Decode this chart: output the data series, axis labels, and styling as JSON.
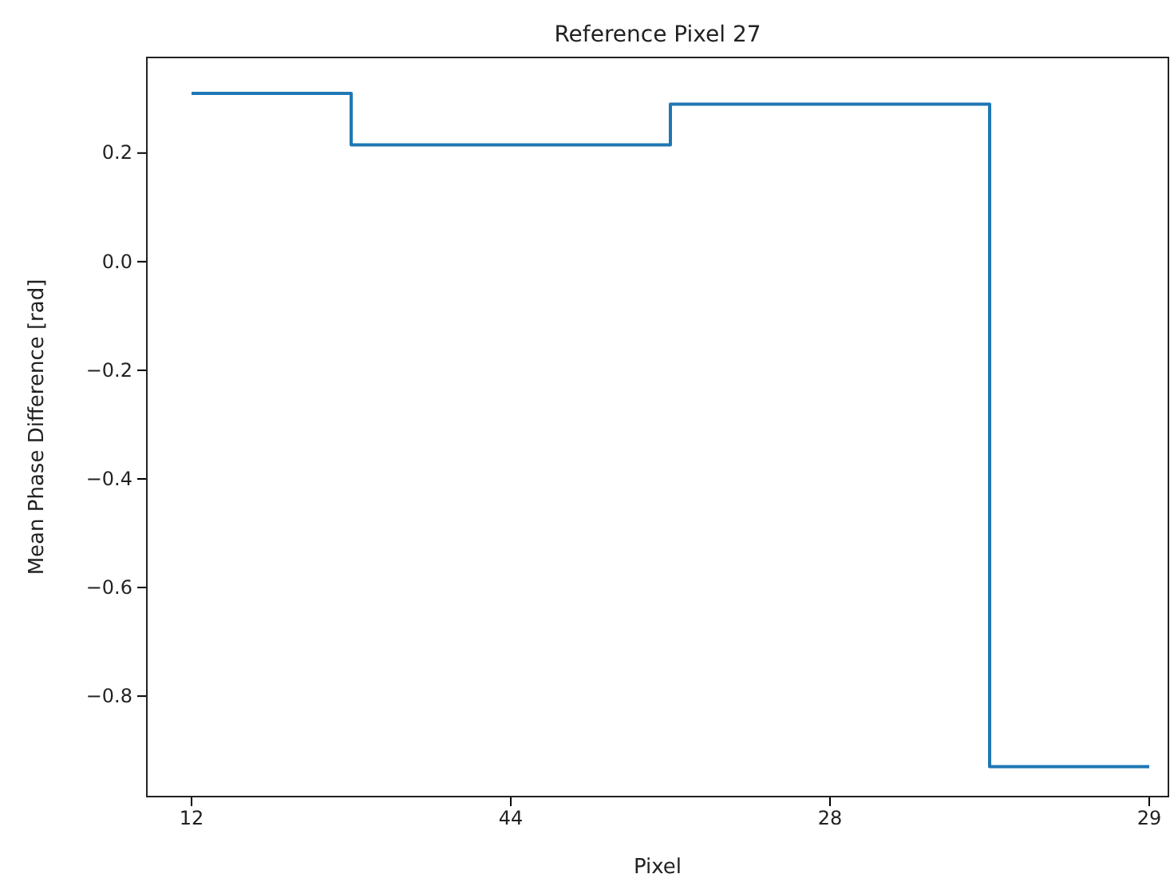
{
  "chart_data": {
    "type": "step",
    "title": "Reference Pixel 27",
    "xlabel": "Pixel",
    "ylabel": "Mean Phase Difference [rad]",
    "categories": [
      "12",
      "44",
      "28",
      "29"
    ],
    "series": [
      {
        "color": "#1f77b4",
        "values": [
          0.31,
          0.215,
          0.29,
          -0.93
        ]
      }
    ],
    "ylim": [
      -0.985,
      0.376
    ],
    "yticks": [
      {
        "value": -0.8,
        "label": "−0.8"
      },
      {
        "value": -0.6,
        "label": "−0.6"
      },
      {
        "value": -0.4,
        "label": "−0.4"
      },
      {
        "value": -0.2,
        "label": "−0.2"
      },
      {
        "value": 0,
        "label": "0.0"
      },
      {
        "value": 0.2,
        "label": "0.2"
      }
    ],
    "grid": false,
    "legend": false
  }
}
